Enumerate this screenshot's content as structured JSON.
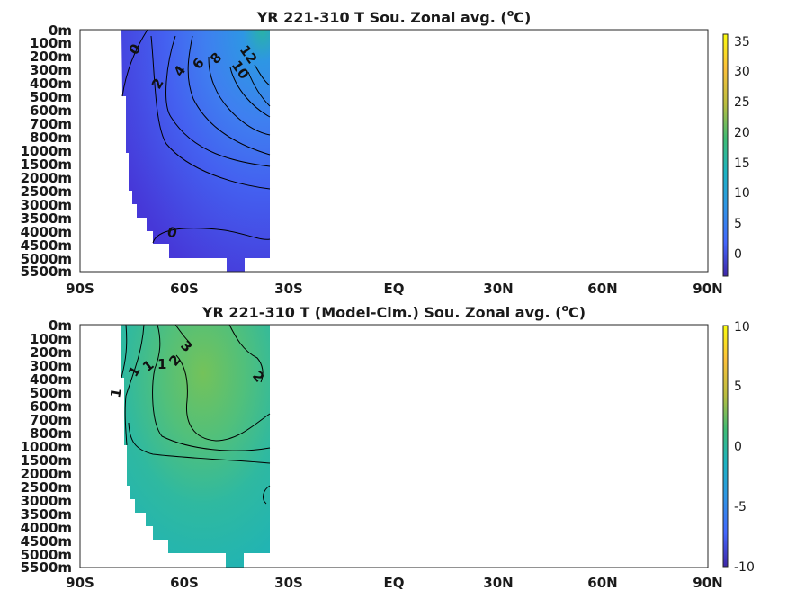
{
  "chart_data": [
    {
      "type": "heatmap",
      "title": "YR 221-310 T Sou. Zonal avg. (",
      "title_sup": "o",
      "title_end": "C)",
      "x_ticks": [
        "90S",
        "60S",
        "30S",
        "EQ",
        "30N",
        "60N",
        "90N"
      ],
      "y_ticks": [
        "0m",
        "100m",
        "200m",
        "300m",
        "400m",
        "500m",
        "600m",
        "700m",
        "800m",
        "1000m",
        "1500m",
        "2000m",
        "2500m",
        "3000m",
        "3500m",
        "4000m",
        "4500m",
        "5000m",
        "5500m"
      ],
      "colorbar_ticks": [
        "35",
        "30",
        "25",
        "20",
        "15",
        "10",
        "5",
        "0"
      ],
      "colorbar_range": [
        -3.5,
        36
      ],
      "contour_labels": [
        "0",
        "2",
        "4",
        "6",
        "8",
        "10",
        "12",
        "0"
      ],
      "colormap": [
        "#3e26a8",
        "#4367fd",
        "#2e96e4",
        "#1cb3c1",
        "#3fbc73",
        "#b9bd3f",
        "#fcc13a",
        "#f9fb0e"
      ]
    },
    {
      "type": "heatmap",
      "title": "YR 221-310 T (Model-Clm.) Sou. Zonal avg. (",
      "title_sup": "o",
      "title_end": "C)",
      "x_ticks": [
        "90S",
        "60S",
        "30S",
        "EQ",
        "30N",
        "60N",
        "90N"
      ],
      "y_ticks": [
        "0m",
        "100m",
        "200m",
        "300m",
        "400m",
        "500m",
        "600m",
        "700m",
        "800m",
        "1000m",
        "1500m",
        "2000m",
        "2500m",
        "3000m",
        "3500m",
        "4000m",
        "4500m",
        "5000m",
        "5500m"
      ],
      "colorbar_ticks": [
        "10",
        "5",
        "0",
        "-5",
        "-10"
      ],
      "colorbar_range": [
        -10,
        10
      ],
      "contour_labels": [
        "1",
        "1",
        "1",
        "1",
        "2",
        "3",
        "2"
      ],
      "colormap": [
        "#3e26a8",
        "#4367fd",
        "#2e96e4",
        "#1cb3c1",
        "#3fbc73",
        "#b9bd3f",
        "#fcc13a",
        "#f9fb0e"
      ]
    }
  ]
}
